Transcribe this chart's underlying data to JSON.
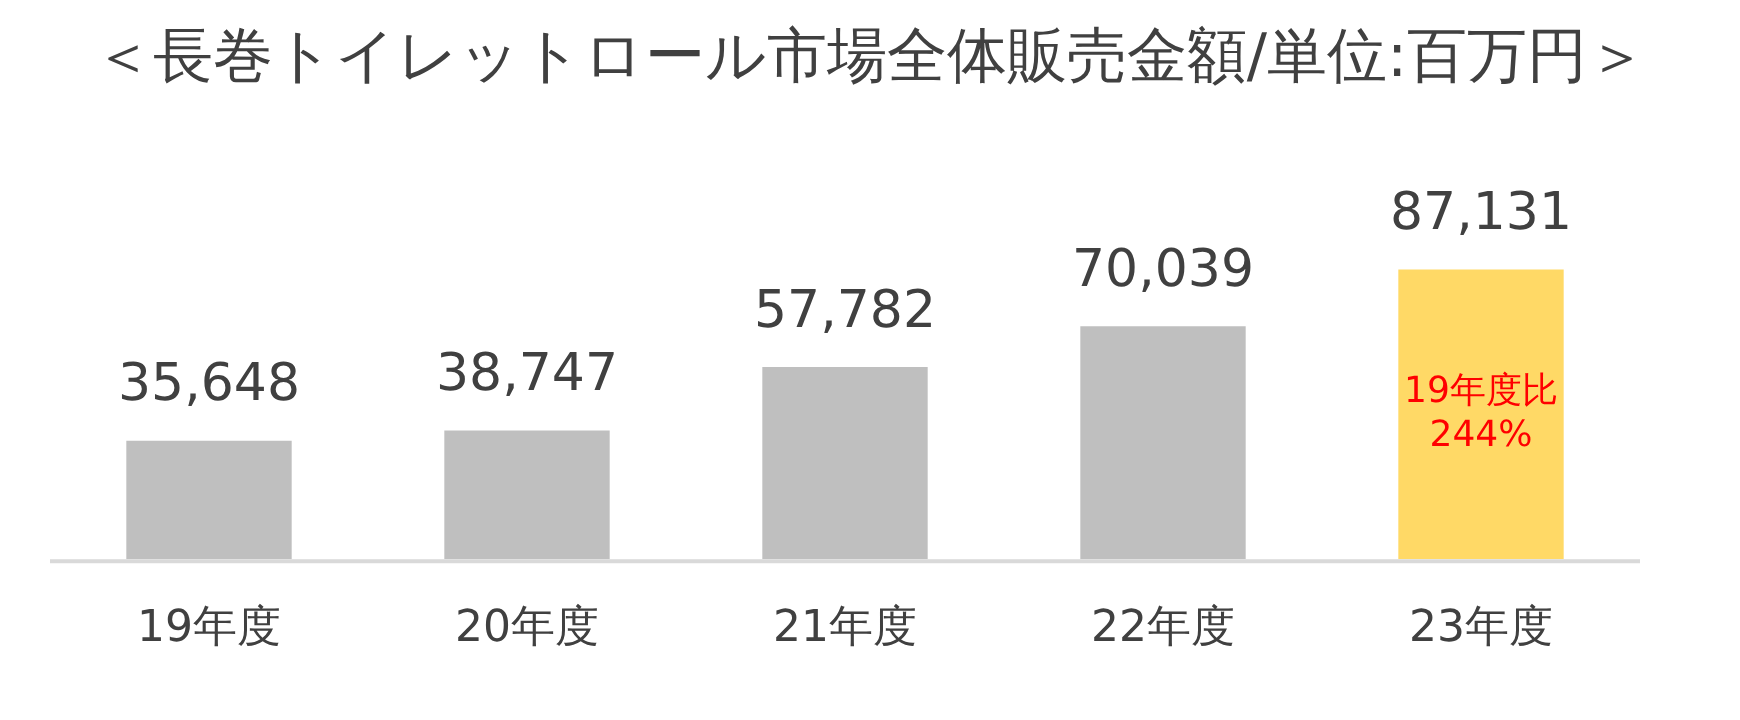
{
  "chart_data": {
    "type": "bar",
    "title": "＜長巻トイレットロール市場全体販売金額/単位:百万円＞",
    "categories": [
      "19年度",
      "20年度",
      "21年度",
      "22年度",
      "23年度"
    ],
    "values": [
      35648,
      38747,
      57782,
      70039,
      87131
    ],
    "colors": [
      "#bfbfbf",
      "#bfbfbf",
      "#bfbfbf",
      "#bfbfbf",
      "#ffd966"
    ],
    "value_labels": [
      "35,648",
      "38,747",
      "57,782",
      "70,039",
      "87,131"
    ],
    "grid": false,
    "legend": false,
    "annotations": [
      "19年度比\n244%"
    ]
  }
}
